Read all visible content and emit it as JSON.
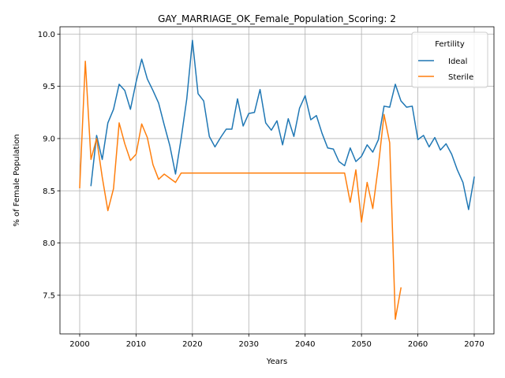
{
  "chart_data": {
    "type": "line",
    "title": "GAY_MARRIAGE_OK_Female_Population_Scoring: 2",
    "xlabel": "Years",
    "ylabel": "% of Female Population",
    "xlim": [
      1996.5,
      2073.5
    ],
    "ylim": [
      7.13,
      10.07
    ],
    "x_ticks": [
      2000,
      2010,
      2020,
      2030,
      2040,
      2050,
      2060,
      2070
    ],
    "y_ticks": [
      7.5,
      8.0,
      8.5,
      9.0,
      9.5,
      10.0
    ],
    "x_tick_labels": [
      "2000",
      "2010",
      "2020",
      "2030",
      "2040",
      "2050",
      "2060",
      "2070"
    ],
    "y_tick_labels": [
      "7.5",
      "8.0",
      "8.5",
      "9.0",
      "9.5",
      "10.0"
    ],
    "grid": true,
    "legend": {
      "title": "Fertility",
      "position": "top-right"
    },
    "series": [
      {
        "name": "Ideal",
        "color": "#1f77b4",
        "x": [
          2002,
          2003,
          2004,
          2005,
          2006,
          2007,
          2008,
          2009,
          2010,
          2011,
          2012,
          2013,
          2014,
          2015,
          2016,
          2017,
          2018,
          2019,
          2020,
          2021,
          2022,
          2023,
          2024,
          2025,
          2026,
          2027,
          2028,
          2029,
          2030,
          2031,
          2032,
          2033,
          2034,
          2035,
          2036,
          2037,
          2038,
          2039,
          2040,
          2041,
          2042,
          2043,
          2044,
          2045,
          2046,
          2047,
          2048,
          2049,
          2050,
          2051,
          2052,
          2053,
          2054,
          2055,
          2056,
          2057,
          2058,
          2059,
          2060,
          2061,
          2062,
          2063,
          2064,
          2065,
          2066,
          2067,
          2068,
          2069,
          2070
        ],
        "values": [
          8.55,
          9.03,
          8.8,
          9.15,
          9.28,
          9.52,
          9.46,
          9.28,
          9.54,
          9.76,
          9.57,
          9.46,
          9.34,
          9.13,
          8.93,
          8.66,
          9.0,
          9.38,
          9.94,
          9.43,
          9.36,
          9.02,
          8.92,
          9.01,
          9.09,
          9.09,
          9.38,
          9.12,
          9.24,
          9.25,
          9.47,
          9.15,
          9.08,
          9.17,
          8.94,
          9.19,
          9.02,
          9.29,
          9.41,
          9.18,
          9.22,
          9.05,
          8.91,
          8.9,
          8.78,
          8.74,
          8.91,
          8.78,
          8.83,
          8.94,
          8.87,
          8.99,
          9.31,
          9.3,
          9.52,
          9.36,
          9.3,
          9.31,
          8.99,
          9.03,
          8.92,
          9.01,
          8.89,
          8.95,
          8.85,
          8.7,
          8.58,
          8.32,
          8.63
        ]
      },
      {
        "name": "Sterile",
        "color": "#ff7f0e",
        "x": [
          2000,
          2001,
          2002,
          2003,
          2004,
          2005,
          2006,
          2007,
          2008,
          2009,
          2010,
          2011,
          2012,
          2013,
          2014,
          2015,
          2016,
          2017,
          2018,
          2019,
          2020,
          2021,
          2022,
          2023,
          2024,
          2025,
          2026,
          2027,
          2028,
          2029,
          2030,
          2031,
          2032,
          2033,
          2034,
          2035,
          2036,
          2037,
          2038,
          2039,
          2040,
          2041,
          2042,
          2043,
          2044,
          2045,
          2046,
          2047,
          2048,
          2049,
          2050,
          2051,
          2052,
          2053,
          2054,
          2055,
          2056,
          2057
        ],
        "values": [
          8.53,
          9.74,
          8.8,
          9.0,
          8.63,
          8.31,
          8.52,
          9.15,
          8.95,
          8.79,
          8.85,
          9.14,
          9.01,
          8.75,
          8.61,
          8.66,
          8.62,
          8.58,
          8.67,
          8.67,
          8.67,
          8.67,
          8.67,
          8.67,
          8.67,
          8.67,
          8.67,
          8.67,
          8.67,
          8.67,
          8.67,
          8.67,
          8.67,
          8.67,
          8.67,
          8.67,
          8.67,
          8.67,
          8.67,
          8.67,
          8.67,
          8.67,
          8.67,
          8.67,
          8.67,
          8.67,
          8.67,
          8.67,
          8.39,
          8.7,
          8.2,
          8.58,
          8.33,
          8.74,
          9.23,
          8.96,
          7.27,
          7.57
        ]
      }
    ]
  }
}
